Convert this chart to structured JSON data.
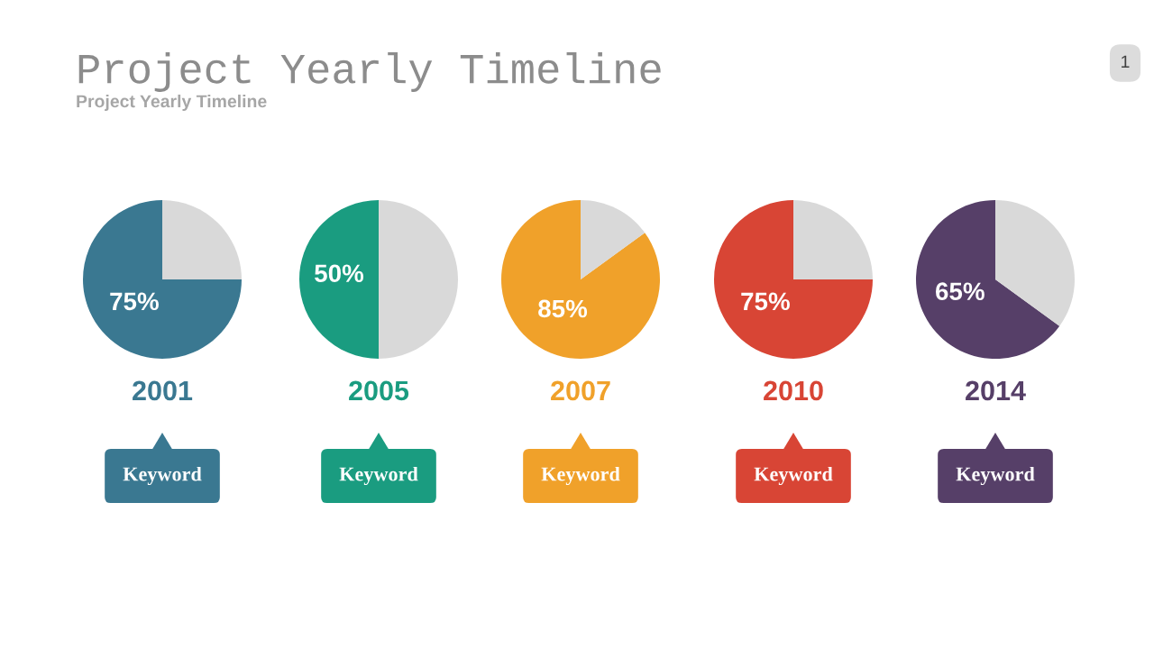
{
  "chart_data": [
    {
      "type": "pie",
      "title": "Project Yearly Timeline",
      "subtitle": "Project Yearly Timeline",
      "categories": [
        null,
        null
      ],
      "values": [
        75,
        25
      ],
      "colors": [
        "#3a7891",
        "#d9d9d9"
      ],
      "value_labels": [
        "75%",
        null
      ],
      "xlabel": "2001",
      "annotations": [
        "Keyword",
        "1"
      ],
      "legend": false
    },
    {
      "type": "pie",
      "categories": [
        null,
        null
      ],
      "values": [
        50,
        50
      ],
      "colors": [
        "#1a9c80",
        "#d9d9d9"
      ],
      "value_labels": [
        "50%",
        null
      ],
      "xlabel": "2005",
      "annotations": [
        "Keyword"
      ],
      "legend": false
    },
    {
      "type": "pie",
      "categories": [
        null,
        null
      ],
      "values": [
        85,
        15
      ],
      "colors": [
        "#f0a12a",
        "#d9d9d9"
      ],
      "value_labels": [
        "85%",
        null
      ],
      "xlabel": "2007",
      "annotations": [
        "Keyword"
      ],
      "legend": false
    },
    {
      "type": "pie",
      "categories": [
        null,
        null
      ],
      "values": [
        75,
        25
      ],
      "colors": [
        "#d84535",
        "#d9d9d9"
      ],
      "value_labels": [
        "75%",
        null
      ],
      "xlabel": "2010",
      "annotations": [
        "Keyword"
      ],
      "legend": false
    },
    {
      "type": "pie",
      "categories": [
        null,
        null
      ],
      "values": [
        65,
        35
      ],
      "colors": [
        "#563f68",
        "#d9d9d9"
      ],
      "value_labels": [
        "65%",
        null
      ],
      "xlabel": "2014",
      "annotations": [
        "Keyword"
      ],
      "legend": false
    }
  ]
}
